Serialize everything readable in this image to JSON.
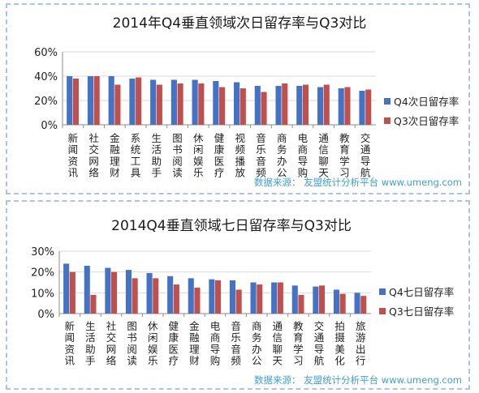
{
  "chart_data": [
    {
      "type": "bar",
      "title": "2014年Q4垂直领域次日留存率与Q3对比",
      "categories": [
        "新闻资讯",
        "社交网络",
        "金融理财",
        "系统工具",
        "生活助手",
        "图书阅读",
        "休闲娱乐",
        "健康医疗",
        "视频播放",
        "音乐音频",
        "商务办公",
        "电商导购",
        "通信聊天",
        "教育学习",
        "交通导航"
      ],
      "series": [
        {
          "name": "Q4次日留存率",
          "color": "#4472c4",
          "values": [
            40,
            40,
            40,
            38,
            37,
            37,
            37,
            36,
            35,
            32,
            32,
            32,
            31,
            30,
            28
          ]
        },
        {
          "name": "Q3次日留存率",
          "color": "#c0504d",
          "values": [
            38,
            40,
            33,
            39,
            33,
            34,
            34,
            31,
            30,
            27,
            34,
            33,
            33,
            31,
            29
          ]
        }
      ],
      "yticks": [
        "60%",
        "40%",
        "20%",
        "0%"
      ],
      "ylim": [
        0,
        60
      ],
      "grid": true,
      "legend": "right",
      "source": "数据来源： 友盟统计分析平台 www.umeng.com"
    },
    {
      "type": "bar",
      "title": "2014Q4垂直领域七日留存率与Q3对比",
      "categories": [
        "新闻资讯",
        "生活助手",
        "社交网络",
        "图书阅读",
        "休闲娱乐",
        "健康医疗",
        "金融理财",
        "电商导购",
        "音乐音频",
        "商务办公",
        "通信聊天",
        "教育学习",
        "交通导航",
        "拍摄美化",
        "旅游出行"
      ],
      "series": [
        {
          "name": "Q4七日留存率",
          "color": "#4472c4",
          "values": [
            24,
            23,
            22,
            21,
            19.5,
            18,
            17,
            16.5,
            16,
            15,
            15,
            13.5,
            13,
            11.5,
            10
          ]
        },
        {
          "name": "Q3七日留存率",
          "color": "#c0504d",
          "values": [
            20,
            9,
            20,
            17,
            17,
            14,
            12.5,
            16,
            11.5,
            14,
            15,
            9,
            13.5,
            9.5,
            8.5
          ]
        }
      ],
      "yticks": [
        "30%",
        "20%",
        "10%",
        "0%"
      ],
      "ylim": [
        0,
        30
      ],
      "grid": true,
      "legend": "right",
      "source": "数据来源： 友盟统计分析平台 www.umeng.com"
    }
  ]
}
